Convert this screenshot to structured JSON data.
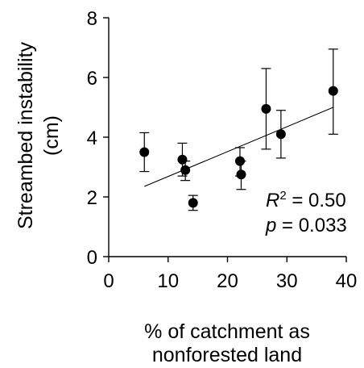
{
  "chart_data": {
    "type": "scatter",
    "xlabel_line1": "% of catchment as",
    "xlabel_line2": "nonforested land",
    "ylabel_line1": "Streambed instability",
    "ylabel_line2": "(cm)",
    "xlim": [
      0,
      40
    ],
    "ylim": [
      0,
      8
    ],
    "xticks": [
      0,
      10,
      20,
      30,
      40
    ],
    "yticks": [
      0,
      2,
      4,
      6,
      8
    ],
    "points": [
      {
        "x": 6.0,
        "y": 3.5,
        "err_low": 2.85,
        "err_high": 4.15
      },
      {
        "x": 12.4,
        "y": 3.25,
        "err_low": 2.7,
        "err_high": 3.8
      },
      {
        "x": 12.9,
        "y": 2.9,
        "err_low": 2.55,
        "err_high": 3.2
      },
      {
        "x": 14.2,
        "y": 1.8,
        "err_low": 1.55,
        "err_high": 2.05
      },
      {
        "x": 22.1,
        "y": 3.2,
        "err_low": 2.7,
        "err_high": 3.65
      },
      {
        "x": 22.3,
        "y": 2.75,
        "err_low": 2.25,
        "err_high": 3.2
      },
      {
        "x": 26.5,
        "y": 4.95,
        "err_low": 3.6,
        "err_high": 6.3
      },
      {
        "x": 29.0,
        "y": 4.1,
        "err_low": 3.3,
        "err_high": 4.9
      },
      {
        "x": 37.8,
        "y": 5.55,
        "err_low": 4.1,
        "err_high": 6.95
      }
    ],
    "fit_line": {
      "x": [
        6.0,
        37.8
      ],
      "y": [
        2.35,
        5.0
      ]
    },
    "stats": {
      "r2_symbol": "R",
      "r2_exp": "2",
      "r2_value": " = 0.50",
      "p_symbol": "p",
      "p_value": " = 0.033"
    }
  }
}
